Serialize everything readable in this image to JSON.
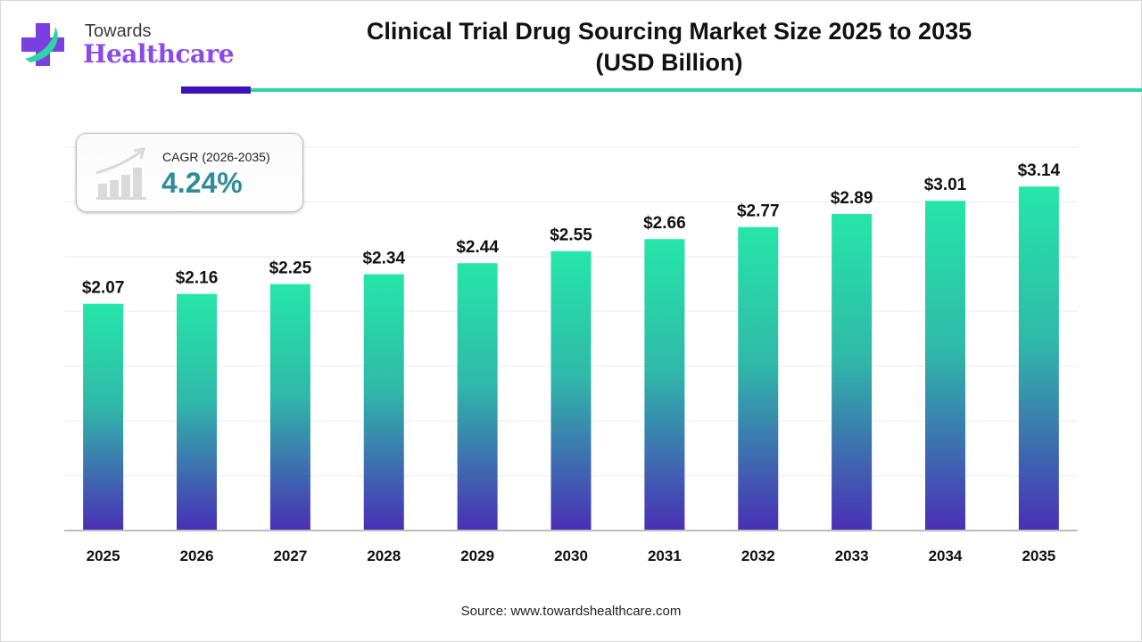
{
  "logo": {
    "line1": "Towards",
    "line2": "Healthcare"
  },
  "title": "Clinical Trial Drug Sourcing Market Size 2025 to 2035",
  "subtitle": "(USD Billion)",
  "cagr": {
    "label": "CAGR (2026-2035)",
    "value": "4.24%",
    "icon": "growth-chart-icon"
  },
  "source": "Source: www.towardshealthcare.com",
  "colors": {
    "bar_top": "#25e6a8",
    "bar_bottom": "#4a2fb6",
    "accent_dark": "#3a12b5",
    "accent_teal": "#2fd3a6",
    "cagr_value": "#2f8c9a"
  },
  "chart_data": {
    "type": "bar",
    "title": "Clinical Trial Drug Sourcing Market Size 2025 to 2035 (USD Billion)",
    "categories": [
      "2025",
      "2026",
      "2027",
      "2028",
      "2029",
      "2030",
      "2031",
      "2032",
      "2033",
      "2034",
      "2035"
    ],
    "values": [
      2.07,
      2.16,
      2.25,
      2.34,
      2.44,
      2.55,
      2.66,
      2.77,
      2.89,
      3.01,
      3.14
    ],
    "data_labels": [
      "$2.07",
      "$2.16",
      "$2.25",
      "$2.34",
      "$2.44",
      "$2.55",
      "$2.66",
      "$2.77",
      "$2.89",
      "$3.01",
      "$3.14"
    ],
    "xlabel": "",
    "ylabel": "",
    "ylim": [
      0,
      3.5
    ],
    "grid": true,
    "y_axis_visible": false
  }
}
